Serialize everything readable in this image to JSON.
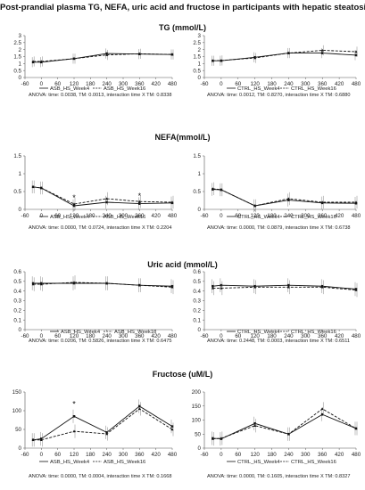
{
  "title": "Post-prandial plasma TG, NEFA, uric acid and fructose in participants with hepatic steatosis",
  "sections": [
    {
      "title": "TG (mmol/L)"
    },
    {
      "title": "NEFA(mmol/L)"
    },
    {
      "title": "Uric acid (mmol/L)"
    },
    {
      "title": "Fructose (uM/L)"
    }
  ],
  "chart_data": [
    {
      "type": "line",
      "title": "",
      "ylim": [
        0,
        3
      ],
      "yticks": [
        "0",
        "0.5",
        "1",
        "1.5",
        "2",
        "2.5",
        "3"
      ],
      "x": [
        -30,
        0,
        120,
        240,
        360,
        480
      ],
      "xticks": [
        "-60",
        "0",
        "60",
        "120",
        "180",
        "240",
        "300",
        "360",
        "420",
        "480"
      ],
      "series": [
        {
          "name": "ASB_HS_Week4",
          "values": [
            1.1,
            1.1,
            1.35,
            1.72,
            1.68,
            1.65
          ]
        },
        {
          "name": "ASB_HS_Week16",
          "values": [
            1.15,
            1.15,
            1.35,
            1.62,
            1.7,
            1.65
          ]
        }
      ],
      "annotations": [],
      "anova": "ANOVA: time: 0.0038, TM: 0.0013, interaction time X TM: 0.8338"
    },
    {
      "type": "line",
      "title": "",
      "ylim": [
        0,
        3
      ],
      "yticks": [
        "0",
        "0.5",
        "1",
        "1.5",
        "2",
        "2.5",
        "3"
      ],
      "x": [
        -30,
        0,
        120,
        240,
        360,
        480
      ],
      "xticks": [
        "-60",
        "0",
        "60",
        "120",
        "180",
        "240",
        "300",
        "360",
        "420",
        "480"
      ],
      "series": [
        {
          "name": "CTRL_HS_Week4",
          "values": [
            1.2,
            1.2,
            1.45,
            1.75,
            1.75,
            1.6
          ]
        },
        {
          "name": "CTRL_HS_Week16",
          "values": [
            1.2,
            1.22,
            1.4,
            1.75,
            1.95,
            1.85
          ]
        }
      ],
      "annotations": [],
      "anova": "ANOVA: time: 0.0012, TM: 0.8270, interaction time X TM: 0.6880"
    },
    {
      "type": "line",
      "title": "",
      "ylim": [
        0,
        1.5
      ],
      "yticks": [
        "0",
        "0.5",
        "1",
        "1.5"
      ],
      "x": [
        -30,
        0,
        120,
        240,
        360,
        480
      ],
      "xticks": [
        "-60",
        "0",
        "60",
        "120",
        "180",
        "240",
        "300",
        "360",
        "420",
        "480"
      ],
      "series": [
        {
          "name": "ASB_HS_Week4",
          "values": [
            0.63,
            0.6,
            0.1,
            0.2,
            0.16,
            0.18
          ]
        },
        {
          "name": "ASB_HS_Week16",
          "values": [
            0.63,
            0.6,
            0.15,
            0.3,
            0.22,
            0.2
          ]
        }
      ],
      "annotations": [
        {
          "text": "*",
          "x": 120,
          "y": 0.32
        },
        {
          "text": "*",
          "x": 360,
          "y": 0.38
        }
      ],
      "anova": "ANOVA: time: 0.0000, TM: 0.0724, interaction time X TM: 0.2204"
    },
    {
      "type": "line",
      "title": "",
      "ylim": [
        0,
        1.5
      ],
      "yticks": [
        "0",
        "0.5",
        "1",
        "1.5"
      ],
      "x": [
        -30,
        0,
        120,
        240,
        360,
        480
      ],
      "xticks": [
        "-60",
        "0",
        "60",
        "120",
        "180",
        "240",
        "300",
        "360",
        "420",
        "480"
      ],
      "series": [
        {
          "name": "CTRL_HS_Week4",
          "values": [
            0.56,
            0.55,
            0.1,
            0.26,
            0.18,
            0.17
          ]
        },
        {
          "name": "CTRL_HS_Week16",
          "values": [
            0.58,
            0.55,
            0.1,
            0.3,
            0.2,
            0.2
          ]
        }
      ],
      "annotations": [],
      "anova": "ANOVA: time: 0.0000, TM: 0.0879, interaction time X TM: 0.6738"
    },
    {
      "type": "line",
      "title": "",
      "ylim": [
        0,
        0.6
      ],
      "yticks": [
        "0",
        "0.1",
        "0.2",
        "0.3",
        "0.4",
        "0.5",
        "0.6"
      ],
      "x": [
        -30,
        0,
        120,
        240,
        360,
        480
      ],
      "xticks": [
        "-60",
        "0",
        "60",
        "120",
        "180",
        "240",
        "300",
        "360",
        "420",
        "480"
      ],
      "series": [
        {
          "name": "ASB_HS_Week4",
          "values": [
            0.48,
            0.48,
            0.48,
            0.48,
            0.46,
            0.45
          ]
        },
        {
          "name": "ASB_HS_Week16",
          "values": [
            0.47,
            0.47,
            0.49,
            0.48,
            0.46,
            0.44
          ]
        }
      ],
      "annotations": [],
      "anova": "ANOVA: time: 0.0206, TM: 0.5826, interaction time X TM: 0.6475"
    },
    {
      "type": "line",
      "title": "",
      "ylim": [
        0,
        0.6
      ],
      "yticks": [
        "0",
        "0.1",
        "0.2",
        "0.3",
        "0.4",
        "0.5",
        "0.6"
      ],
      "x": [
        -30,
        0,
        120,
        240,
        360,
        480
      ],
      "xticks": [
        "-60",
        "0",
        "60",
        "120",
        "180",
        "240",
        "300",
        "360",
        "420",
        "480"
      ],
      "series": [
        {
          "name": "CTRL_HS_Week4",
          "values": [
            0.45,
            0.46,
            0.45,
            0.46,
            0.45,
            0.42
          ]
        },
        {
          "name": "CTRL_HS_Week16",
          "values": [
            0.43,
            0.43,
            0.44,
            0.44,
            0.44,
            0.41
          ]
        }
      ],
      "annotations": [],
      "anova": "ANOVA: time: 0.2448, TM: 0.0003, interaction time X TM: 0.6511"
    },
    {
      "type": "line",
      "title": "",
      "ylim": [
        0,
        150
      ],
      "yticks": [
        "0",
        "50",
        "100",
        "150"
      ],
      "x": [
        -30,
        0,
        120,
        240,
        360,
        480
      ],
      "xticks": [
        "-60",
        "0",
        "60",
        "120",
        "180",
        "240",
        "300",
        "360",
        "420",
        "480"
      ],
      "series": [
        {
          "name": "ASB_HS_Week4",
          "values": [
            22,
            25,
            85,
            42,
            112,
            58
          ]
        },
        {
          "name": "ASB_HS_Week16",
          "values": [
            22,
            22,
            45,
            38,
            105,
            50
          ]
        }
      ],
      "annotations": [
        {
          "text": "*",
          "x": 120,
          "y": 118
        }
      ],
      "anova": "ANOVA: time: 0.0000, TM: 0.0004, interaction time X TM: 0.1668"
    },
    {
      "type": "line",
      "title": "",
      "ylim": [
        0,
        200
      ],
      "yticks": [
        "0",
        "50",
        "100",
        "150",
        "200"
      ],
      "x": [
        -30,
        0,
        120,
        240,
        360,
        480
      ],
      "xticks": [
        "-60",
        "0",
        "60",
        "120",
        "180",
        "240",
        "300",
        "360",
        "420",
        "480"
      ],
      "series": [
        {
          "name": "CTRL_HS_Week4",
          "values": [
            35,
            33,
            88,
            50,
            120,
            70
          ]
        },
        {
          "name": "CTRL_HS_Week16",
          "values": [
            33,
            35,
            80,
            50,
            140,
            70
          ]
        }
      ],
      "annotations": [],
      "anova": "ANOVA: time: 0.0000, TM: 0.1605, interaction time X TM: 0.8327"
    }
  ]
}
